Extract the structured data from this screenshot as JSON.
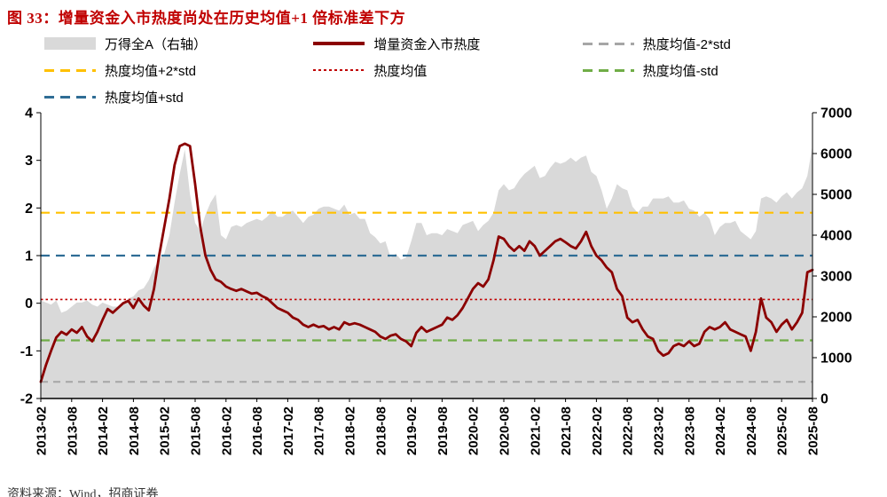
{
  "title": "图 33：增量资金入市热度尚处在历史均值+1 倍标准差下方",
  "source": "资料来源：Wind，招商证券",
  "colors": {
    "title_accent": "#c00000",
    "heat_line": "#8B0000",
    "area_fill": "#D9D9D9"
  },
  "legend": {
    "items": [
      {
        "label": "万得全A（右轴）",
        "marker": "area",
        "color": "#D9D9D9"
      },
      {
        "label": "增量资金入市热度",
        "marker": "line",
        "color": "#8B0000"
      },
      {
        "label": "热度均值-2*std",
        "marker": "dashed",
        "color": "#A6A6A6"
      },
      {
        "label": "热度均值+2*std",
        "marker": "dashed",
        "color": "#FFC000"
      },
      {
        "label": "热度均值",
        "marker": "dotted",
        "color": "#C00000"
      },
      {
        "label": "热度均值-std",
        "marker": "dashed",
        "color": "#70AD47"
      },
      {
        "label": "热度均值+std",
        "marker": "dashed",
        "color": "#2F6D95"
      }
    ]
  },
  "chart_data": {
    "type": "line+area",
    "title": "增量资金入市热度与万得全A",
    "x_tick_every": 6,
    "x_tick_labels": [
      "2013-02",
      "2013-08",
      "2014-02",
      "2014-08",
      "2015-02",
      "2015-08",
      "2016-02",
      "2016-08",
      "2017-02",
      "2017-08",
      "2018-02",
      "2018-08",
      "2019-02",
      "2019-08",
      "2020-02",
      "2020-08",
      "2021-02",
      "2021-08",
      "2022-02",
      "2022-08",
      "2023-02",
      "2023-08",
      "2024-02",
      "2024-08",
      "2025-02",
      "2025-08"
    ],
    "left_axis": {
      "min": -2,
      "max": 4,
      "ticks": [
        -2,
        -1,
        0,
        1,
        2,
        3,
        4
      ],
      "label": "增量资金入市热度"
    },
    "right_axis": {
      "min": 0,
      "max": 7000,
      "ticks": [
        0,
        1000,
        2000,
        3000,
        4000,
        5000,
        6000,
        7000
      ],
      "label": "万得全A（右轴）"
    },
    "ref_lines": [
      {
        "label": "热度均值+2*std",
        "value": 1.9,
        "color": "#FFC000",
        "dash": "10 7",
        "width": 2.2
      },
      {
        "label": "热度均值+std",
        "value": 1.0,
        "color": "#2F6D95",
        "dash": "10 7",
        "width": 2.2
      },
      {
        "label": "热度均值",
        "value": 0.08,
        "color": "#C00000",
        "dash": "2.5 3",
        "width": 1.6
      },
      {
        "label": "热度均值-std",
        "value": -0.78,
        "color": "#70AD47",
        "dash": "10 7",
        "width": 2.2
      },
      {
        "label": "热度均值-2*std",
        "value": -1.65,
        "color": "#A6A6A6",
        "dash": "8 6",
        "width": 2
      }
    ],
    "series": [
      {
        "name": "万得全A（右轴）",
        "type": "area",
        "axis": "right",
        "color": "#D9D9D9",
        "values": [
          2400,
          2350,
          2300,
          2400,
          2100,
          2150,
          2250,
          2350,
          2350,
          2400,
          2300,
          2250,
          2350,
          2300,
          2250,
          2250,
          2300,
          2450,
          2500,
          2650,
          2700,
          2900,
          3200,
          3400,
          3550,
          4000,
          4800,
          5500,
          6100,
          5000,
          4300,
          4100,
          4500,
          4800,
          5000,
          4000,
          3900,
          4200,
          4250,
          4200,
          4300,
          4350,
          4400,
          4350,
          4450,
          4600,
          4450,
          4450,
          4550,
          4600,
          4450,
          4300,
          4450,
          4500,
          4650,
          4700,
          4700,
          4650,
          4600,
          4750,
          4500,
          4550,
          4400,
          4400,
          4050,
          3950,
          3800,
          3850,
          3450,
          3550,
          3400,
          3450,
          3850,
          4300,
          4300,
          4000,
          4050,
          4050,
          4000,
          4150,
          4100,
          4050,
          4250,
          4300,
          4350,
          4100,
          4250,
          4350,
          4550,
          5100,
          5250,
          5100,
          5150,
          5350,
          5500,
          5600,
          5700,
          5400,
          5450,
          5650,
          5800,
          5750,
          5800,
          5900,
          5800,
          5900,
          5950,
          5550,
          5450,
          5100,
          4650,
          4900,
          5250,
          5150,
          5100,
          4700,
          4550,
          4700,
          4700,
          4900,
          4900,
          4900,
          4950,
          4800,
          4800,
          4850,
          4650,
          4600,
          4450,
          4550,
          4400,
          4000,
          4200,
          4300,
          4300,
          4350,
          4100,
          4000,
          3900,
          4100,
          4900,
          4950,
          4900,
          4800,
          4950,
          5050,
          4900,
          5050,
          5150,
          5450,
          6200
        ]
      },
      {
        "name": "增量资金入市热度",
        "type": "line",
        "axis": "left",
        "color": "#8B0000",
        "values": [
          -1.65,
          -1.3,
          -1.0,
          -0.72,
          -0.6,
          -0.66,
          -0.55,
          -0.62,
          -0.5,
          -0.7,
          -0.8,
          -0.6,
          -0.35,
          -0.12,
          -0.2,
          -0.1,
          0.0,
          0.05,
          -0.1,
          0.1,
          -0.05,
          -0.15,
          0.3,
          1.0,
          1.6,
          2.2,
          2.9,
          3.3,
          3.35,
          3.3,
          2.5,
          1.6,
          1.0,
          0.7,
          0.5,
          0.45,
          0.35,
          0.3,
          0.26,
          0.3,
          0.25,
          0.2,
          0.22,
          0.15,
          0.1,
          0.0,
          -0.1,
          -0.15,
          -0.2,
          -0.3,
          -0.35,
          -0.45,
          -0.5,
          -0.45,
          -0.5,
          -0.48,
          -0.55,
          -0.5,
          -0.55,
          -0.4,
          -0.45,
          -0.42,
          -0.45,
          -0.5,
          -0.55,
          -0.6,
          -0.7,
          -0.75,
          -0.68,
          -0.65,
          -0.75,
          -0.8,
          -0.9,
          -0.62,
          -0.5,
          -0.6,
          -0.55,
          -0.5,
          -0.45,
          -0.3,
          -0.35,
          -0.25,
          -0.1,
          0.1,
          0.3,
          0.42,
          0.35,
          0.5,
          0.9,
          1.4,
          1.35,
          1.2,
          1.1,
          1.2,
          1.1,
          1.3,
          1.2,
          1.0,
          1.1,
          1.2,
          1.3,
          1.35,
          1.28,
          1.2,
          1.15,
          1.3,
          1.5,
          1.2,
          1.0,
          0.9,
          0.75,
          0.65,
          0.3,
          0.15,
          -0.3,
          -0.4,
          -0.35,
          -0.55,
          -0.7,
          -0.75,
          -1.0,
          -1.1,
          -1.05,
          -0.9,
          -0.85,
          -0.9,
          -0.8,
          -0.9,
          -0.85,
          -0.6,
          -0.5,
          -0.55,
          -0.5,
          -0.4,
          -0.55,
          -0.6,
          -0.65,
          -0.7,
          -1.0,
          -0.6,
          0.1,
          -0.3,
          -0.4,
          -0.6,
          -0.45,
          -0.35,
          -0.55,
          -0.4,
          -0.2,
          0.65,
          0.7
        ]
      }
    ]
  }
}
